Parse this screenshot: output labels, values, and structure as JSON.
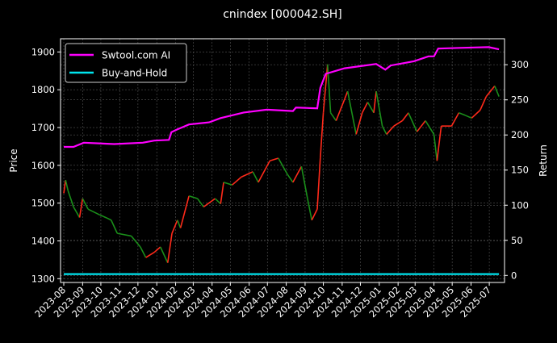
{
  "chart_data": {
    "type": "line",
    "title": "cnindex [000042.SH]",
    "ylabel_left": "Price",
    "ylabel_right": "Return",
    "ylim_left": [
      1290,
      1935
    ],
    "ylim_right": [
      -10,
      337
    ],
    "yticks_left": [
      1300,
      1400,
      1500,
      1600,
      1700,
      1800,
      1900
    ],
    "yticks_right": [
      0,
      50,
      100,
      150,
      200,
      250,
      300
    ],
    "xticks": [
      "2023-08",
      "2023-09",
      "2023-10",
      "2023-11",
      "2023-12",
      "2024-01",
      "2024-02",
      "2024-03",
      "2024-04",
      "2024-05",
      "2024-06",
      "2024-07",
      "2024-08",
      "2024-09",
      "2024-10",
      "2024-11",
      "2024-12",
      "2025-01",
      "2025-02",
      "2025-03",
      "2025-04",
      "2025-05",
      "2025-06",
      "2025-07"
    ],
    "grid": true,
    "legend_placement": "top-left",
    "background": "#000000",
    "colors": {
      "up": "#ff2a1a",
      "down": "#1a8f1a",
      "swtool": "#ff00ff",
      "buyhold": "#00e5ee"
    },
    "price": {
      "axis": "left",
      "x": [
        "2023-08-01",
        "2023-08-04",
        "2023-08-08",
        "2023-08-17",
        "2023-08-27",
        "2023-09-01",
        "2023-09-10",
        "2023-09-29",
        "2023-10-09",
        "2023-10-18",
        "2023-10-28",
        "2023-11-20",
        "2023-12-05",
        "2023-12-14",
        "2023-12-28",
        "2024-01-07",
        "2024-01-19",
        "2024-01-26",
        "2024-02-04",
        "2024-02-09",
        "2024-02-23",
        "2024-03-08",
        "2024-03-18",
        "2024-04-06",
        "2024-04-15",
        "2024-04-20",
        "2024-05-04",
        "2024-05-19",
        "2024-06-07",
        "2024-06-16",
        "2024-07-05",
        "2024-07-19",
        "2024-08-03",
        "2024-08-12",
        "2024-08-26",
        "2024-09-05",
        "2024-09-12",
        "2024-09-21",
        "2024-09-26",
        "2024-10-01",
        "2024-10-08",
        "2024-10-13",
        "2024-10-22",
        "2024-11-05",
        "2024-11-10",
        "2024-11-24",
        "2024-12-04",
        "2024-12-13",
        "2024-12-23",
        "2024-12-27",
        "2025-01-06",
        "2025-01-13",
        "2025-01-25",
        "2025-02-08",
        "2025-02-18",
        "2025-03-04",
        "2025-03-18",
        "2025-04-01",
        "2025-04-06",
        "2025-04-13",
        "2025-04-30",
        "2025-05-12",
        "2025-05-23",
        "2025-06-02",
        "2025-06-16",
        "2025-06-26",
        "2025-07-10",
        "2025-07-17"
      ],
      "values": [
        1526,
        1561,
        1533,
        1490,
        1462,
        1512,
        1484,
        1469,
        1462,
        1455,
        1420,
        1413,
        1384,
        1356,
        1370,
        1384,
        1342,
        1420,
        1455,
        1434,
        1519,
        1512,
        1490,
        1512,
        1498,
        1555,
        1548,
        1569,
        1583,
        1555,
        1612,
        1619,
        1576,
        1555,
        1597,
        1512,
        1455,
        1484,
        1619,
        1739,
        1867,
        1739,
        1718,
        1775,
        1796,
        1682,
        1739,
        1767,
        1739,
        1796,
        1704,
        1682,
        1704,
        1718,
        1739,
        1689,
        1718,
        1682,
        1612,
        1704,
        1704,
        1739,
        1732,
        1725,
        1746,
        1782,
        1810,
        1782
      ]
    },
    "series": [
      {
        "name": "Swtool.com AI",
        "axis": "right",
        "x": [
          "2023-08-01",
          "2023-08-17",
          "2023-09-03",
          "2023-10-23",
          "2023-12-09",
          "2023-12-28",
          "2024-01-21",
          "2024-01-25",
          "2024-02-04",
          "2024-02-23",
          "2024-03-27",
          "2024-04-15",
          "2024-05-23",
          "2024-06-30",
          "2024-08-12",
          "2024-08-17",
          "2024-09-21",
          "2024-09-26",
          "2024-10-05",
          "2024-11-05",
          "2024-12-27",
          "2025-01-11",
          "2025-01-20",
          "2025-02-27",
          "2025-03-23",
          "2025-04-01",
          "2025-04-08",
          "2025-05-14",
          "2025-06-30",
          "2025-07-17"
        ],
        "values": [
          183,
          183,
          189,
          187,
          189,
          192,
          193,
          204,
          208,
          215,
          218,
          224,
          232,
          236,
          234,
          239,
          238,
          267,
          287,
          295,
          301,
          293,
          299,
          305,
          312,
          312,
          323,
          324,
          325,
          322
        ]
      },
      {
        "name": "Buy-and-Hold",
        "axis": "right",
        "x": [
          "2023-08-01",
          "2025-07-17"
        ],
        "values": [
          2,
          2
        ]
      }
    ]
  }
}
